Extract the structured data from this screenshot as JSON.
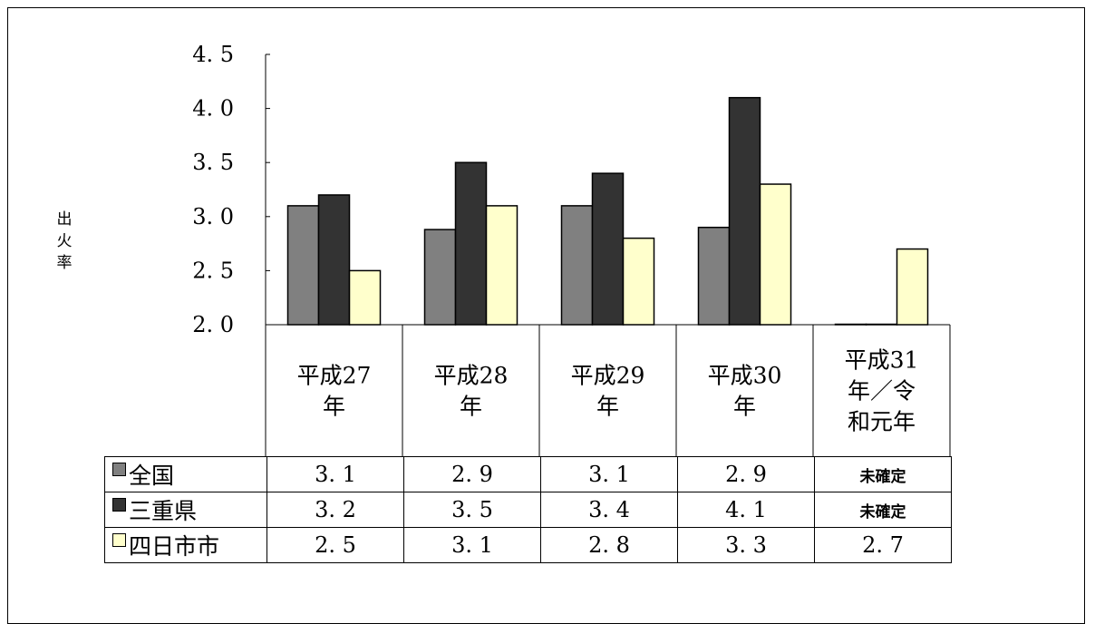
{
  "chart_data": {
    "type": "bar",
    "ylabel": "出火率",
    "ylim": [
      2.0,
      4.5
    ],
    "yticks": [
      "2.0",
      "2.5",
      "3.0",
      "3.5",
      "4.0",
      "4.5"
    ],
    "categories": [
      [
        "平成27",
        "年"
      ],
      [
        "平成28",
        "年"
      ],
      [
        "平成29",
        "年"
      ],
      [
        "平成30",
        "年"
      ],
      [
        "平成31",
        "年／令",
        "和元年"
      ]
    ],
    "series": [
      {
        "name": "全国",
        "color": "#808080",
        "values": [
          3.1,
          2.88,
          3.1,
          2.9,
          2.0
        ],
        "labels": [
          "3.1",
          "2.9",
          "3.1",
          "2.9",
          "未確定"
        ]
      },
      {
        "name": "三重県",
        "color": "#333333",
        "values": [
          3.2,
          3.5,
          3.4,
          4.1,
          2.0
        ],
        "labels": [
          "3.2",
          "3.5",
          "3.4",
          "4.1",
          "未確定"
        ]
      },
      {
        "name": "四日市市",
        "color": "#ffffcc",
        "values": [
          2.5,
          3.1,
          2.8,
          3.3,
          2.7
        ],
        "labels": [
          "2.5",
          "3.1",
          "2.8",
          "3.3",
          "2.7"
        ]
      }
    ],
    "grid": false,
    "legend": "table-left"
  }
}
